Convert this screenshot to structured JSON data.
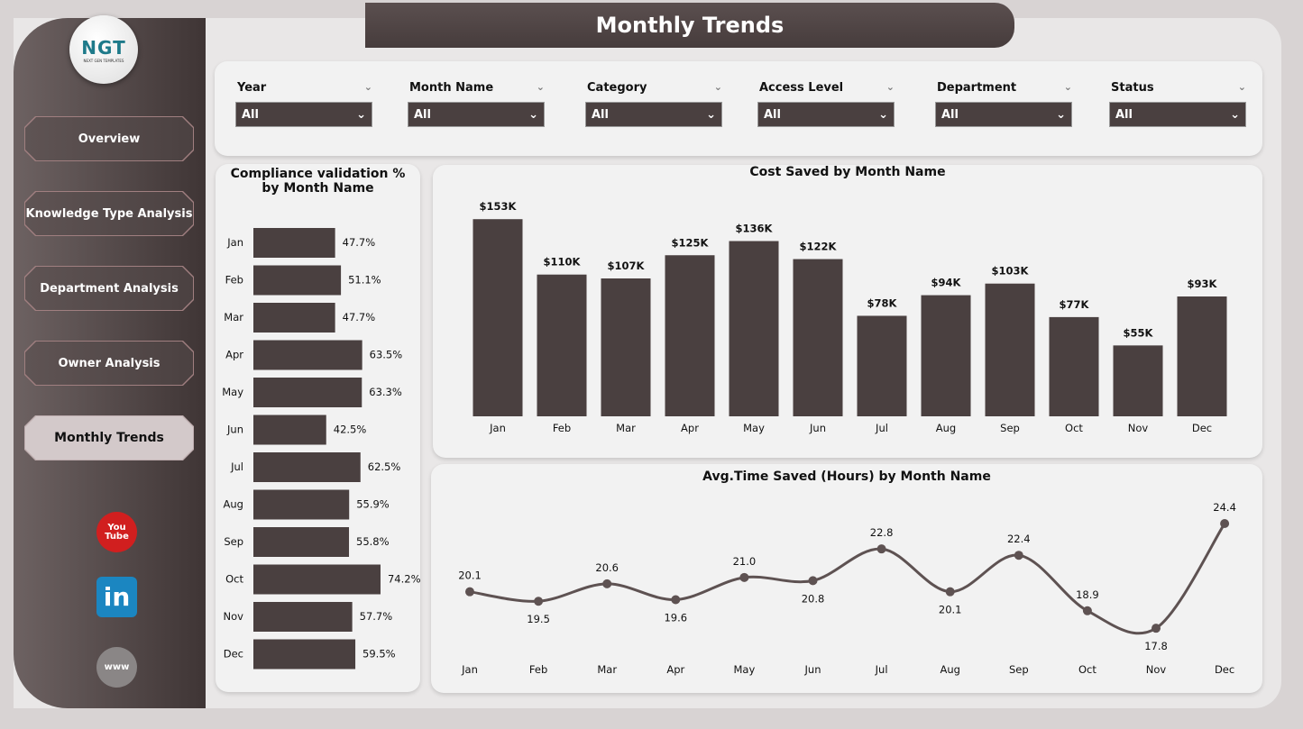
{
  "header": {
    "title": "Monthly Trends"
  },
  "logo": {
    "text": "NGT",
    "subtitle": "NEXT GEN TEMPLATES"
  },
  "nav": [
    {
      "label": "Overview"
    },
    {
      "label": "Knowledge Type Analysis"
    },
    {
      "label": "Department Analysis"
    },
    {
      "label": "Owner Analysis"
    },
    {
      "label": "Monthly Trends",
      "active": true
    }
  ],
  "social": [
    {
      "icon": "youtube-icon",
      "label": "You Tube"
    },
    {
      "icon": "linkedin-icon",
      "label": "in"
    },
    {
      "icon": "globe-www-icon",
      "label": "www"
    }
  ],
  "filters": [
    {
      "label": "Year",
      "value": "All"
    },
    {
      "label": "Month Name",
      "value": "All"
    },
    {
      "label": "Category",
      "value": "All"
    },
    {
      "label": "Access Level",
      "value": "All"
    },
    {
      "label": "Department",
      "value": "All"
    },
    {
      "label": "Status",
      "value": "All"
    }
  ],
  "colors": {
    "bar": "#4a4040",
    "line": "#5e5252",
    "sidebar": "#4a4040"
  },
  "chart_data": [
    {
      "type": "bar",
      "orientation": "horizontal",
      "title": "Compliance validation % by Month Name",
      "categories": [
        "Jan",
        "Feb",
        "Mar",
        "Apr",
        "May",
        "Jun",
        "Jul",
        "Aug",
        "Sep",
        "Oct",
        "Nov",
        "Dec"
      ],
      "values": [
        47.7,
        51.1,
        47.7,
        63.5,
        63.3,
        42.5,
        62.5,
        55.9,
        55.8,
        74.2,
        57.7,
        59.5
      ],
      "labels": [
        "47.7%",
        "51.1%",
        "47.7%",
        "63.5%",
        "63.3%",
        "42.5%",
        "62.5%",
        "55.9%",
        "55.8%",
        "74.2%",
        "57.7%",
        "59.5%"
      ]
    },
    {
      "type": "bar",
      "title": "Cost Saved by Month Name",
      "categories": [
        "Jan",
        "Feb",
        "Mar",
        "Apr",
        "May",
        "Jun",
        "Jul",
        "Aug",
        "Sep",
        "Oct",
        "Nov",
        "Dec"
      ],
      "values": [
        153,
        110,
        107,
        125,
        136,
        122,
        78,
        94,
        103,
        77,
        55,
        93
      ],
      "labels": [
        "$153K",
        "$110K",
        "$107K",
        "$125K",
        "$136K",
        "$122K",
        "$78K",
        "$94K",
        "$103K",
        "$77K",
        "$55K",
        "$93K"
      ]
    },
    {
      "type": "line",
      "title": "Avg.Time Saved (Hours) by Month Name",
      "categories": [
        "Jan",
        "Feb",
        "Mar",
        "Apr",
        "May",
        "Jun",
        "Jul",
        "Aug",
        "Sep",
        "Oct",
        "Nov",
        "Dec"
      ],
      "values": [
        20.1,
        19.5,
        20.6,
        19.6,
        21.0,
        20.8,
        22.8,
        20.1,
        22.4,
        18.9,
        17.8,
        24.4
      ],
      "labels": [
        "20.1",
        "19.5",
        "20.6",
        "19.6",
        "21.0",
        "20.8",
        "22.8",
        "20.1",
        "22.4",
        "18.9",
        "17.8",
        "24.4"
      ]
    }
  ]
}
